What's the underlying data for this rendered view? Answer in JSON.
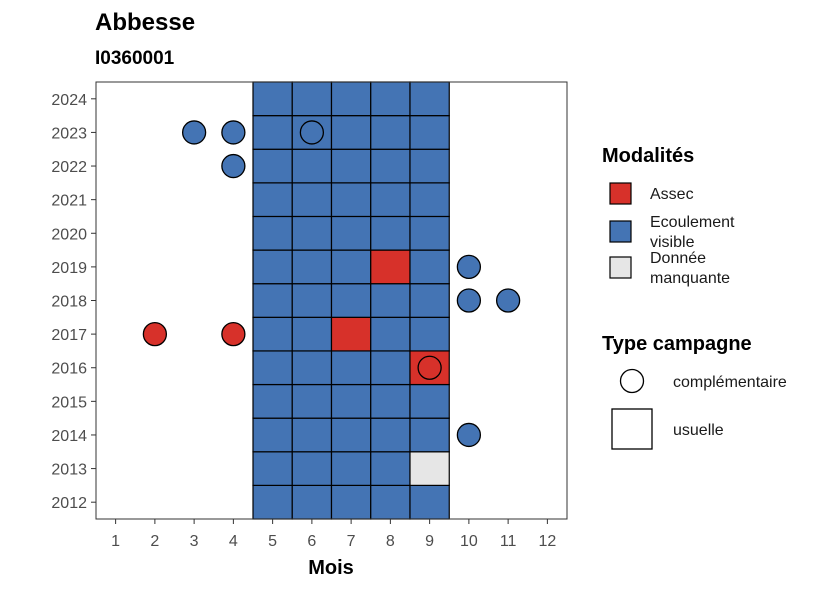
{
  "colors": {
    "assec": "#d7312a",
    "ecoulement": "#4474b4",
    "manquante": "#e6e6e6",
    "outline": "#000000"
  },
  "chart_data": {
    "type": "heatmap",
    "title": "Abbesse",
    "subtitle": "I0360001",
    "xlabel": "Mois",
    "ylabel": "",
    "x_ticks": [
      1,
      2,
      3,
      4,
      5,
      6,
      7,
      8,
      9,
      10,
      11,
      12
    ],
    "y_ticks": [
      2012,
      2013,
      2014,
      2015,
      2016,
      2017,
      2018,
      2019,
      2020,
      2021,
      2022,
      2023,
      2024
    ],
    "xlim": [
      0.5,
      12.5
    ],
    "ylim": [
      2011.5,
      2024.5
    ],
    "grid": false,
    "legend_position": "right",
    "usual_months": [
      5,
      6,
      7,
      8,
      9
    ],
    "usual_exceptions": [
      {
        "year": 2016,
        "month": 9,
        "modalite": "Assec"
      },
      {
        "year": 2017,
        "month": 7,
        "modalite": "Assec"
      },
      {
        "year": 2019,
        "month": 8,
        "modalite": "Assec"
      },
      {
        "year": 2013,
        "month": 9,
        "modalite": "Donnée manquante"
      }
    ],
    "default_modalite": "Ecoulement visible",
    "complementary": [
      {
        "year": 2023,
        "month": 3,
        "modalite": "Ecoulement visible"
      },
      {
        "year": 2023,
        "month": 4,
        "modalite": "Ecoulement visible"
      },
      {
        "year": 2023,
        "month": 6,
        "modalite": "Ecoulement visible",
        "hollow": true
      },
      {
        "year": 2022,
        "month": 4,
        "modalite": "Ecoulement visible"
      },
      {
        "year": 2019,
        "month": 10,
        "modalite": "Ecoulement visible"
      },
      {
        "year": 2018,
        "month": 10,
        "modalite": "Ecoulement visible"
      },
      {
        "year": 2018,
        "month": 11,
        "modalite": "Ecoulement visible"
      },
      {
        "year": 2017,
        "month": 2,
        "modalite": "Assec"
      },
      {
        "year": 2017,
        "month": 4,
        "modalite": "Assec"
      },
      {
        "year": 2016,
        "month": 9,
        "modalite": "Assec"
      },
      {
        "year": 2014,
        "month": 10,
        "modalite": "Ecoulement visible"
      }
    ],
    "legend": {
      "modalites_title": "Modalités",
      "modalites": [
        {
          "key": "assec",
          "lines": [
            "Assec"
          ]
        },
        {
          "key": "ecoulement",
          "lines": [
            "Ecoulement",
            "visible"
          ]
        },
        {
          "key": "manquante",
          "lines": [
            "Donnée",
            "manquante"
          ]
        }
      ],
      "type_title": "Type campagne",
      "types": [
        {
          "shape": "circle",
          "label": "complémentaire"
        },
        {
          "shape": "square",
          "label": "usuelle"
        }
      ]
    }
  }
}
